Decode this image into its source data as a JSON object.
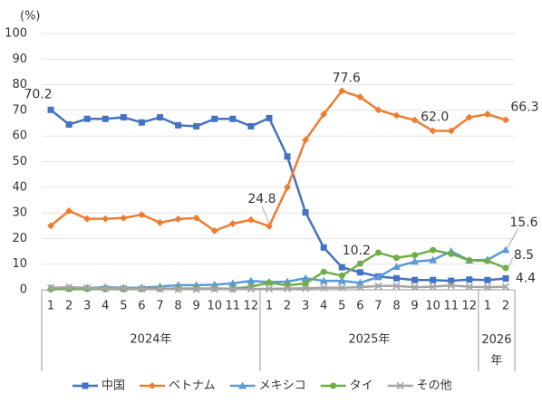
{
  "chart_data": {
    "type": "line",
    "y_unit": "(%)",
    "categories": [
      "1",
      "2",
      "3",
      "4",
      "5",
      "6",
      "7",
      "8",
      "9",
      "10",
      "11",
      "12",
      "1",
      "2",
      "3",
      "4",
      "5",
      "6",
      "7",
      "8",
      "9",
      "10",
      "11",
      "12",
      "1",
      "2"
    ],
    "groups": [
      {
        "label": "2024年",
        "count": 12
      },
      {
        "label": "2025年",
        "count": 12
      },
      {
        "label": "2026年",
        "count": 2
      }
    ],
    "ylim": [
      0,
      100
    ],
    "yticks": [
      0,
      10,
      20,
      30,
      40,
      50,
      60,
      70,
      80,
      90,
      100
    ],
    "grid": true,
    "series": [
      {
        "name": "中国",
        "color": "#4472c4",
        "marker": "square",
        "values": [
          70.2,
          64.5,
          66.7,
          66.7,
          67.3,
          65.3,
          67.3,
          64.2,
          63.8,
          66.7,
          66.7,
          63.8,
          67.0,
          52.0,
          30.2,
          16.5,
          8.8,
          6.8,
          5.2,
          4.5,
          3.8,
          3.8,
          3.5,
          4.0,
          3.8,
          4.4
        ],
        "value_labels": [
          "70.2",
          null,
          null,
          null,
          null,
          null,
          null,
          null,
          null,
          null,
          null,
          null,
          null,
          null,
          null,
          null,
          null,
          null,
          null,
          null,
          null,
          null,
          null,
          null,
          null,
          "4.4"
        ]
      },
      {
        "name": "ベトナム",
        "color": "#ed7d31",
        "marker": "diamond",
        "values": [
          25.0,
          30.8,
          27.7,
          27.7,
          28.0,
          29.3,
          26.2,
          27.6,
          28.0,
          23.0,
          25.8,
          27.3,
          24.8,
          40.0,
          58.5,
          68.5,
          77.6,
          75.2,
          70.2,
          68.0,
          66.2,
          62.0,
          62.0,
          67.3,
          68.5,
          66.3
        ],
        "value_labels": [
          null,
          null,
          null,
          null,
          null,
          null,
          null,
          null,
          null,
          null,
          null,
          null,
          "24.8",
          null,
          null,
          null,
          "77.6",
          null,
          null,
          null,
          null,
          "62.0",
          null,
          null,
          null,
          "66.3"
        ]
      },
      {
        "name": "メキシコ",
        "color": "#5b9bd5",
        "marker": "triangle",
        "values": [
          0.7,
          0.6,
          0.7,
          1.0,
          0.8,
          0.8,
          1.3,
          1.8,
          1.8,
          2.0,
          2.5,
          3.5,
          3.0,
          3.2,
          4.5,
          3.5,
          3.5,
          2.7,
          5.0,
          9.0,
          11.0,
          11.6,
          15.0,
          11.5,
          11.7,
          15.6
        ],
        "value_labels": [
          null,
          null,
          null,
          null,
          null,
          null,
          null,
          null,
          null,
          null,
          null,
          null,
          null,
          null,
          null,
          null,
          null,
          null,
          null,
          null,
          null,
          null,
          null,
          null,
          null,
          "15.6"
        ]
      },
      {
        "name": "タイ",
        "color": "#70ad47",
        "marker": "circle",
        "values": [
          0.2,
          0.3,
          0.3,
          0.3,
          0.2,
          0.3,
          0.4,
          0.5,
          0.5,
          0.5,
          0.4,
          1.2,
          2.8,
          1.7,
          2.5,
          7.0,
          5.5,
          10.2,
          14.5,
          12.5,
          13.5,
          15.5,
          14.0,
          11.5,
          11.3,
          8.5
        ],
        "value_labels": [
          null,
          null,
          null,
          null,
          null,
          null,
          null,
          null,
          null,
          null,
          null,
          null,
          null,
          null,
          null,
          null,
          null,
          "10.2",
          null,
          null,
          null,
          null,
          null,
          null,
          null,
          "8.5"
        ]
      },
      {
        "name": "その他",
        "color": "#a5a5a5",
        "marker": "x",
        "values": [
          0.8,
          1.0,
          0.8,
          0.5,
          0.5,
          0.4,
          0.3,
          0.2,
          0.2,
          0.3,
          0.2,
          0.3,
          0.4,
          0.5,
          0.6,
          0.8,
          0.8,
          1.0,
          1.5,
          1.5,
          1.0,
          1.2,
          1.7,
          1.2,
          1.0,
          1.2
        ]
      }
    ]
  }
}
